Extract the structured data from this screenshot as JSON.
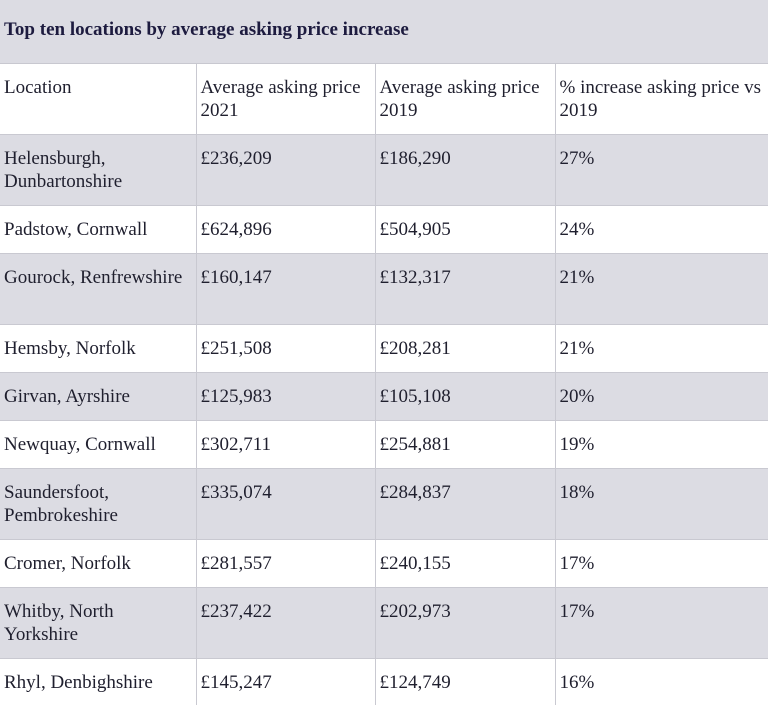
{
  "title": "Top ten locations by average asking price increase",
  "columns": [
    "Location",
    "Average asking price 2021",
    "Average asking price 2019",
    "% increase asking price vs 2019"
  ],
  "rows": [
    {
      "location": "Helensburgh, Dunbartonshire",
      "price_2021": "£236,209",
      "price_2019": "£186,290",
      "increase": "27%"
    },
    {
      "location": "Padstow, Cornwall",
      "price_2021": "£624,896",
      "price_2019": "£504,905",
      "increase": "24%"
    },
    {
      "location": "Gourock, Renfrewshire",
      "price_2021": "£160,147",
      "price_2019": "£132,317",
      "increase": "21%"
    },
    {
      "location": "Hemsby, Norfolk",
      "price_2021": "£251,508",
      "price_2019": "£208,281",
      "increase": "21%"
    },
    {
      "location": "Girvan, Ayrshire",
      "price_2021": "£125,983",
      "price_2019": "£105,108",
      "increase": "20%"
    },
    {
      "location": "Newquay, Cornwall",
      "price_2021": "£302,711",
      "price_2019": "£254,881",
      "increase": "19%"
    },
    {
      "location": "Saundersfoot, Pembrokeshire",
      "price_2021": "£335,074",
      "price_2019": "£284,837",
      "increase": "18%"
    },
    {
      "location": "Cromer, Norfolk",
      "price_2021": "£281,557",
      "price_2019": "£240,155",
      "increase": "17%"
    },
    {
      "location": "Whitby, North Yorkshire",
      "price_2021": "£237,422",
      "price_2019": "£202,973",
      "increase": "17%"
    },
    {
      "location": "Rhyl, Denbighshire",
      "price_2021": "£145,247",
      "price_2019": "£124,749",
      "increase": "16%"
    }
  ],
  "colors": {
    "shaded_row": "#dcdce3",
    "plain_row": "#ffffff",
    "title_text": "#1d1b3f"
  }
}
